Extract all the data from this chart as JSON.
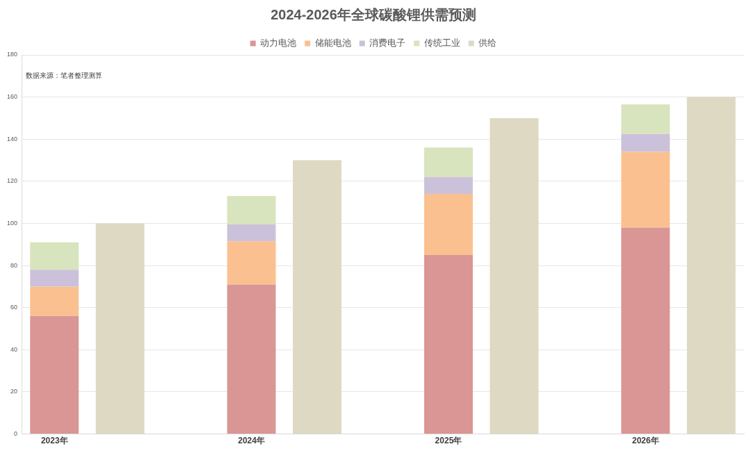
{
  "chart_data": {
    "type": "bar",
    "title": "2024-2026年全球碳酸锂供需预测",
    "categories": [
      "2023年",
      null,
      null,
      "2024年",
      null,
      null,
      "2025年",
      null,
      null,
      "2026年",
      null
    ],
    "series": [
      {
        "name": "动力电池",
        "color": "#d99694",
        "values": [
          56,
          null,
          null,
          71,
          null,
          null,
          85,
          null,
          null,
          98,
          null
        ]
      },
      {
        "name": "储能电池",
        "color": "#fac090",
        "values": [
          14,
          null,
          null,
          20.5,
          null,
          null,
          29,
          null,
          null,
          36,
          null
        ]
      },
      {
        "name": "消费电子",
        "color": "#ccc1da",
        "values": [
          8,
          null,
          null,
          8,
          null,
          null,
          8,
          null,
          null,
          8.5,
          null
        ]
      },
      {
        "name": "传统工业",
        "color": "#d7e4bd",
        "values": [
          13,
          null,
          null,
          13.5,
          null,
          null,
          14,
          null,
          null,
          14,
          null
        ]
      },
      {
        "name": "供给",
        "color": "#ddd9c3",
        "values": [
          null,
          100,
          null,
          null,
          130,
          null,
          null,
          150,
          null,
          null,
          160
        ]
      }
    ],
    "stacked": true,
    "ylim": [
      0,
      180
    ],
    "yticks": [
      0,
      20,
      40,
      60,
      80,
      100,
      120,
      140,
      160,
      180
    ],
    "grid": "y",
    "legend": "top",
    "annotations": [
      "数据来源：笔者整理测算"
    ]
  }
}
